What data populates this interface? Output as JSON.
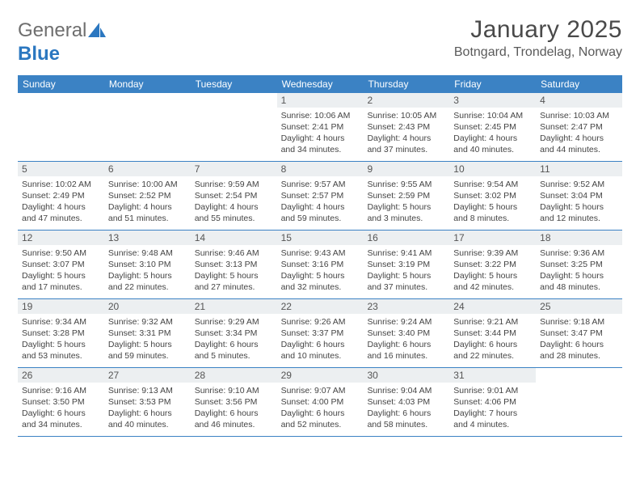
{
  "brand": {
    "part1": "General",
    "part2": "Blue"
  },
  "title": {
    "monthYear": "January 2025",
    "location": "Botngard, Trondelag, Norway"
  },
  "colors": {
    "headerBg": "#3b82c4",
    "dayBar": "#eceff1",
    "rule": "#3b82c4"
  },
  "dayNames": [
    "Sunday",
    "Monday",
    "Tuesday",
    "Wednesday",
    "Thursday",
    "Friday",
    "Saturday"
  ],
  "weeks": [
    [
      {
        "empty": true
      },
      {
        "empty": true
      },
      {
        "empty": true
      },
      {
        "num": "1",
        "sunrise": "10:06 AM",
        "sunset": "2:41 PM",
        "daylight": "4 hours and 34 minutes."
      },
      {
        "num": "2",
        "sunrise": "10:05 AM",
        "sunset": "2:43 PM",
        "daylight": "4 hours and 37 minutes."
      },
      {
        "num": "3",
        "sunrise": "10:04 AM",
        "sunset": "2:45 PM",
        "daylight": "4 hours and 40 minutes."
      },
      {
        "num": "4",
        "sunrise": "10:03 AM",
        "sunset": "2:47 PM",
        "daylight": "4 hours and 44 minutes."
      }
    ],
    [
      {
        "num": "5",
        "sunrise": "10:02 AM",
        "sunset": "2:49 PM",
        "daylight": "4 hours and 47 minutes."
      },
      {
        "num": "6",
        "sunrise": "10:00 AM",
        "sunset": "2:52 PM",
        "daylight": "4 hours and 51 minutes."
      },
      {
        "num": "7",
        "sunrise": "9:59 AM",
        "sunset": "2:54 PM",
        "daylight": "4 hours and 55 minutes."
      },
      {
        "num": "8",
        "sunrise": "9:57 AM",
        "sunset": "2:57 PM",
        "daylight": "4 hours and 59 minutes."
      },
      {
        "num": "9",
        "sunrise": "9:55 AM",
        "sunset": "2:59 PM",
        "daylight": "5 hours and 3 minutes."
      },
      {
        "num": "10",
        "sunrise": "9:54 AM",
        "sunset": "3:02 PM",
        "daylight": "5 hours and 8 minutes."
      },
      {
        "num": "11",
        "sunrise": "9:52 AM",
        "sunset": "3:04 PM",
        "daylight": "5 hours and 12 minutes."
      }
    ],
    [
      {
        "num": "12",
        "sunrise": "9:50 AM",
        "sunset": "3:07 PM",
        "daylight": "5 hours and 17 minutes."
      },
      {
        "num": "13",
        "sunrise": "9:48 AM",
        "sunset": "3:10 PM",
        "daylight": "5 hours and 22 minutes."
      },
      {
        "num": "14",
        "sunrise": "9:46 AM",
        "sunset": "3:13 PM",
        "daylight": "5 hours and 27 minutes."
      },
      {
        "num": "15",
        "sunrise": "9:43 AM",
        "sunset": "3:16 PM",
        "daylight": "5 hours and 32 minutes."
      },
      {
        "num": "16",
        "sunrise": "9:41 AM",
        "sunset": "3:19 PM",
        "daylight": "5 hours and 37 minutes."
      },
      {
        "num": "17",
        "sunrise": "9:39 AM",
        "sunset": "3:22 PM",
        "daylight": "5 hours and 42 minutes."
      },
      {
        "num": "18",
        "sunrise": "9:36 AM",
        "sunset": "3:25 PM",
        "daylight": "5 hours and 48 minutes."
      }
    ],
    [
      {
        "num": "19",
        "sunrise": "9:34 AM",
        "sunset": "3:28 PM",
        "daylight": "5 hours and 53 minutes."
      },
      {
        "num": "20",
        "sunrise": "9:32 AM",
        "sunset": "3:31 PM",
        "daylight": "5 hours and 59 minutes."
      },
      {
        "num": "21",
        "sunrise": "9:29 AM",
        "sunset": "3:34 PM",
        "daylight": "6 hours and 5 minutes."
      },
      {
        "num": "22",
        "sunrise": "9:26 AM",
        "sunset": "3:37 PM",
        "daylight": "6 hours and 10 minutes."
      },
      {
        "num": "23",
        "sunrise": "9:24 AM",
        "sunset": "3:40 PM",
        "daylight": "6 hours and 16 minutes."
      },
      {
        "num": "24",
        "sunrise": "9:21 AM",
        "sunset": "3:44 PM",
        "daylight": "6 hours and 22 minutes."
      },
      {
        "num": "25",
        "sunrise": "9:18 AM",
        "sunset": "3:47 PM",
        "daylight": "6 hours and 28 minutes."
      }
    ],
    [
      {
        "num": "26",
        "sunrise": "9:16 AM",
        "sunset": "3:50 PM",
        "daylight": "6 hours and 34 minutes."
      },
      {
        "num": "27",
        "sunrise": "9:13 AM",
        "sunset": "3:53 PM",
        "daylight": "6 hours and 40 minutes."
      },
      {
        "num": "28",
        "sunrise": "9:10 AM",
        "sunset": "3:56 PM",
        "daylight": "6 hours and 46 minutes."
      },
      {
        "num": "29",
        "sunrise": "9:07 AM",
        "sunset": "4:00 PM",
        "daylight": "6 hours and 52 minutes."
      },
      {
        "num": "30",
        "sunrise": "9:04 AM",
        "sunset": "4:03 PM",
        "daylight": "6 hours and 58 minutes."
      },
      {
        "num": "31",
        "sunrise": "9:01 AM",
        "sunset": "4:06 PM",
        "daylight": "7 hours and 4 minutes."
      },
      {
        "empty": true
      }
    ]
  ],
  "labels": {
    "sunrise": "Sunrise:",
    "sunset": "Sunset:",
    "daylight": "Daylight:"
  }
}
